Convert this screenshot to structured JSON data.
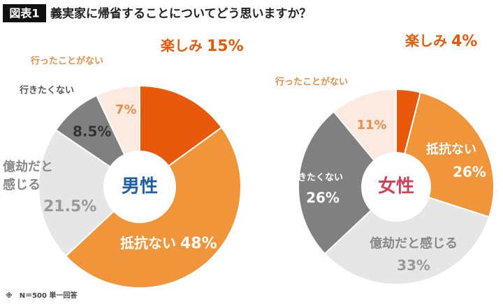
{
  "header": {
    "badge": "図表1",
    "title": "義実家に帰省することについてどう思いますか？"
  },
  "footnote": "※　N＝500 単一回答",
  "chart_data": [
    {
      "type": "pie",
      "title": "男性",
      "title_color": "#1f5fa8",
      "categories": [
        "楽しみ",
        "抵抗ない",
        "億劫だと感じる",
        "行きたくない",
        "行ったことがない"
      ],
      "values": [
        15,
        48,
        21.5,
        8.5,
        7
      ],
      "value_labels": [
        "15%",
        "48%",
        "21.5%",
        "8.5%",
        "7%"
      ],
      "colors": [
        "#e8590c",
        "#f0953a",
        "#e6e6e6",
        "#808080",
        "#fce9df"
      ]
    },
    {
      "type": "pie",
      "title": "女性",
      "title_color": "#d0445a",
      "categories": [
        "楽しみ",
        "抵抗ない",
        "億劫だと感じる",
        "行きたくない",
        "行ったことがない"
      ],
      "values": [
        4,
        26,
        33,
        26,
        11
      ],
      "value_labels": [
        "4%",
        "26%",
        "33%",
        "26%",
        "11%"
      ],
      "colors": [
        "#e8590c",
        "#f0953a",
        "#e6e6e6",
        "#808080",
        "#fce9df"
      ]
    }
  ]
}
